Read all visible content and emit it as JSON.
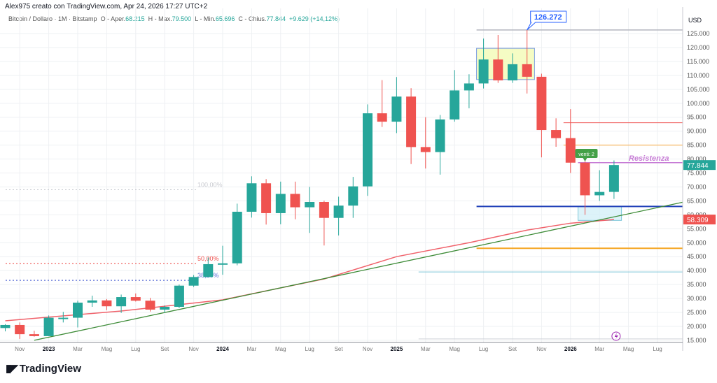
{
  "header": {
    "attribution": "Alex975 creato con TradingView.com, Apr 24, 2026 17:27 UTC+2",
    "symbol": "Bitcoin / Dollaro · 1M · Bitstamp",
    "open_label": "O - Aper.",
    "open": "68.215",
    "high_label": "H - Max.",
    "high": "79.500",
    "low_label": "L - Min.",
    "low": "65.696",
    "close_label": "C - Chius.",
    "close": "77.844",
    "change": "+9.629 (+14,12%)"
  },
  "logo": {
    "text": "TradingView",
    "mark": "17"
  },
  "colors": {
    "up": "#26a69a",
    "down": "#ef5350",
    "grid": "#eef0f3",
    "ma": "#f0616a",
    "trend": "#3d8b37"
  },
  "chart_data": {
    "type": "candlestick",
    "currency_label": "USD",
    "y_ticks": [
      15000,
      20000,
      25000,
      30000,
      35000,
      40000,
      45000,
      50000,
      55000,
      60000,
      65000,
      70000,
      75000,
      80000,
      85000,
      90000,
      95000,
      100000,
      105000,
      110000,
      115000,
      120000,
      125000
    ],
    "y_tick_labels": [
      "15.000",
      "20.000",
      "25.000",
      "30.000",
      "35.000",
      "40.000",
      "45.000",
      "50.000",
      "55.000",
      "60.000",
      "65.000",
      "70.000",
      "75.000",
      "80.000",
      "85.000",
      "90.000",
      "95.000",
      "100.000",
      "105.000",
      "110.000",
      "115.000",
      "120.000",
      "125.000"
    ],
    "ylim": [
      14000,
      128000
    ],
    "x_labels": [
      {
        "month": "2022-11",
        "label": "Nov",
        "bold": false
      },
      {
        "month": "2023-01",
        "label": "2023",
        "bold": true
      },
      {
        "month": "2023-03",
        "label": "Mar",
        "bold": false
      },
      {
        "month": "2023-05",
        "label": "Mag",
        "bold": false
      },
      {
        "month": "2023-07",
        "label": "Lug",
        "bold": false
      },
      {
        "month": "2023-09",
        "label": "Set",
        "bold": false
      },
      {
        "month": "2023-11",
        "label": "Nov",
        "bold": false
      },
      {
        "month": "2024-01",
        "label": "2024",
        "bold": true
      },
      {
        "month": "2024-03",
        "label": "Mar",
        "bold": false
      },
      {
        "month": "2024-05",
        "label": "Mag",
        "bold": false
      },
      {
        "month": "2024-07",
        "label": "Lug",
        "bold": false
      },
      {
        "month": "2024-09",
        "label": "Set",
        "bold": false
      },
      {
        "month": "2024-11",
        "label": "Nov",
        "bold": false
      },
      {
        "month": "2025-01",
        "label": "2025",
        "bold": true
      },
      {
        "month": "2025-03",
        "label": "Mar",
        "bold": false
      },
      {
        "month": "2025-05",
        "label": "Mag",
        "bold": false
      },
      {
        "month": "2025-07",
        "label": "Lug",
        "bold": false
      },
      {
        "month": "2025-09",
        "label": "Set",
        "bold": false
      },
      {
        "month": "2025-11",
        "label": "Nov",
        "bold": false
      },
      {
        "month": "2026-01",
        "label": "2026",
        "bold": true
      },
      {
        "month": "2026-03",
        "label": "Mar",
        "bold": false
      },
      {
        "month": "2026-05",
        "label": "Mag",
        "bold": false
      },
      {
        "month": "2026-07",
        "label": "Lug",
        "bold": false
      }
    ],
    "candles": [
      {
        "month": "2022-10",
        "o": 19400,
        "h": 20800,
        "l": 18200,
        "c": 20500
      },
      {
        "month": "2022-11",
        "o": 20500,
        "h": 21400,
        "l": 15500,
        "c": 17200
      },
      {
        "month": "2022-12",
        "o": 17200,
        "h": 18400,
        "l": 16300,
        "c": 16500
      },
      {
        "month": "2023-01",
        "o": 16500,
        "h": 23900,
        "l": 16500,
        "c": 23100
      },
      {
        "month": "2023-02",
        "o": 23100,
        "h": 25200,
        "l": 21400,
        "c": 23100
      },
      {
        "month": "2023-03",
        "o": 23100,
        "h": 29200,
        "l": 19600,
        "c": 28500
      },
      {
        "month": "2023-04",
        "o": 28500,
        "h": 31000,
        "l": 27000,
        "c": 29300
      },
      {
        "month": "2023-05",
        "o": 29300,
        "h": 29800,
        "l": 25800,
        "c": 27200
      },
      {
        "month": "2023-06",
        "o": 27200,
        "h": 31400,
        "l": 24800,
        "c": 30500
      },
      {
        "month": "2023-07",
        "o": 30500,
        "h": 31800,
        "l": 28900,
        "c": 29200
      },
      {
        "month": "2023-08",
        "o": 29200,
        "h": 30200,
        "l": 25300,
        "c": 26000
      },
      {
        "month": "2023-09",
        "o": 26000,
        "h": 27500,
        "l": 24900,
        "c": 27000
      },
      {
        "month": "2023-10",
        "o": 27000,
        "h": 35000,
        "l": 26500,
        "c": 34600
      },
      {
        "month": "2023-11",
        "o": 34600,
        "h": 38400,
        "l": 34100,
        "c": 37700
      },
      {
        "month": "2023-12",
        "o": 37700,
        "h": 44700,
        "l": 37600,
        "c": 42300
      },
      {
        "month": "2024-01",
        "o": 42300,
        "h": 48900,
        "l": 38500,
        "c": 42600
      },
      {
        "month": "2024-02",
        "o": 42600,
        "h": 64000,
        "l": 41900,
        "c": 61100
      },
      {
        "month": "2024-03",
        "o": 61100,
        "h": 73800,
        "l": 59000,
        "c": 71300
      },
      {
        "month": "2024-04",
        "o": 71300,
        "h": 72800,
        "l": 56500,
        "c": 60600
      },
      {
        "month": "2024-05",
        "o": 60600,
        "h": 71900,
        "l": 56600,
        "c": 67500
      },
      {
        "month": "2024-06",
        "o": 67500,
        "h": 71900,
        "l": 58400,
        "c": 62700
      },
      {
        "month": "2024-07",
        "o": 62700,
        "h": 70000,
        "l": 53500,
        "c": 64600
      },
      {
        "month": "2024-08",
        "o": 64600,
        "h": 65100,
        "l": 49000,
        "c": 58900
      },
      {
        "month": "2024-09",
        "o": 58900,
        "h": 66500,
        "l": 52600,
        "c": 63300
      },
      {
        "month": "2024-10",
        "o": 63300,
        "h": 73600,
        "l": 58900,
        "c": 70200
      },
      {
        "month": "2024-11",
        "o": 70200,
        "h": 99600,
        "l": 66800,
        "c": 96400
      },
      {
        "month": "2024-12",
        "o": 96400,
        "h": 108300,
        "l": 91500,
        "c": 93400
      },
      {
        "month": "2025-01",
        "o": 93400,
        "h": 109400,
        "l": 89300,
        "c": 102400
      },
      {
        "month": "2025-02",
        "o": 102400,
        "h": 105400,
        "l": 78200,
        "c": 84300
      },
      {
        "month": "2025-03",
        "o": 84300,
        "h": 95000,
        "l": 76600,
        "c": 82500
      },
      {
        "month": "2025-04",
        "o": 82500,
        "h": 95800,
        "l": 74400,
        "c": 94200
      },
      {
        "month": "2025-05",
        "o": 94200,
        "h": 111900,
        "l": 93400,
        "c": 104600
      },
      {
        "month": "2025-06",
        "o": 104600,
        "h": 110400,
        "l": 98200,
        "c": 107100
      },
      {
        "month": "2025-07",
        "o": 107100,
        "h": 123200,
        "l": 105300,
        "c": 115700
      },
      {
        "month": "2025-08",
        "o": 115700,
        "h": 124500,
        "l": 107300,
        "c": 108200
      },
      {
        "month": "2025-09",
        "o": 108200,
        "h": 117900,
        "l": 107300,
        "c": 114000
      },
      {
        "month": "2025-10",
        "o": 114000,
        "h": 126272,
        "l": 103500,
        "c": 109500
      },
      {
        "month": "2025-11",
        "o": 109500,
        "h": 110600,
        "l": 80600,
        "c": 90400
      },
      {
        "month": "2025-12",
        "o": 90400,
        "h": 94600,
        "l": 84400,
        "c": 87500
      },
      {
        "month": "2026-01",
        "o": 87500,
        "h": 97900,
        "l": 75000,
        "c": 78700
      },
      {
        "month": "2026-02",
        "o": 78700,
        "h": 79300,
        "l": 60000,
        "c": 67000
      },
      {
        "month": "2026-03",
        "o": 67000,
        "h": 76000,
        "l": 65000,
        "c": 68200
      },
      {
        "month": "2026-04",
        "o": 68215,
        "h": 79500,
        "l": 65696,
        "c": 77844
      }
    ],
    "moving_average": [
      {
        "month": "2022-10",
        "v": 22000
      },
      {
        "month": "2023-06",
        "v": 25500
      },
      {
        "month": "2024-01",
        "v": 29500
      },
      {
        "month": "2024-08",
        "v": 37000
      },
      {
        "month": "2025-01",
        "v": 45000
      },
      {
        "month": "2025-06",
        "v": 50000
      },
      {
        "month": "2025-10",
        "v": 54500
      },
      {
        "month": "2026-01",
        "v": 57000
      },
      {
        "month": "2026-04",
        "v": 58309
      }
    ],
    "trendline": [
      {
        "month": "2022-12",
        "v": 15000
      },
      {
        "month": "2026-10",
        "v": 64500
      }
    ],
    "levels": [
      {
        "name": "ath",
        "value": 126272,
        "from": "2025-07",
        "color": "#b2b5be",
        "width": 1.5
      },
      {
        "name": "red",
        "value": 93000,
        "from": "2026-01",
        "color": "#ef5350",
        "width": 1
      },
      {
        "name": "orange-upper",
        "value": 85000,
        "from": "2026-01",
        "color": "#f7a738",
        "width": 1
      },
      {
        "name": "resistenza",
        "value": 78700,
        "from": "2026-02",
        "color": "#c77dd6",
        "width": 1.5
      },
      {
        "name": "blue",
        "value": 63000,
        "from": "2025-07",
        "color": "#1f3fb8",
        "width": 2
      },
      {
        "name": "orange",
        "value": 48000,
        "from": "2025-07",
        "color": "#f5a623",
        "width": 2
      },
      {
        "name": "cyan",
        "value": 39500,
        "from": "2025-03",
        "color": "#7fc7d9",
        "width": 1
      },
      {
        "name": "gray-low",
        "value": 15500,
        "from": "2025-03",
        "color": "#d0d3d9",
        "width": 1
      }
    ],
    "fib_levels": [
      {
        "label": "100,00%",
        "value": 69000,
        "color": "#c8cad0"
      },
      {
        "label": "50,00%",
        "value": 42500,
        "color": "#ef5350"
      },
      {
        "label": "38,20%",
        "value": 36500,
        "color": "#5b6fd6"
      }
    ],
    "boxes": [
      {
        "name": "top-range",
        "from": "2025-07",
        "to": "2025-11",
        "top": 119700,
        "bottom": 108500,
        "fill": "#f3fbb5",
        "stroke": "#7a9de0"
      },
      {
        "name": "support-zone",
        "from": "2026-02",
        "to": "2026-05",
        "top": 63000,
        "bottom": 58000,
        "fill": "#d4f0f8",
        "stroke": "#7fc7d9"
      }
    ],
    "annotations": {
      "ath_label": "126.272",
      "resistance_label": "Resistenza",
      "signal_label": "venti: 2",
      "last_price": "77.844",
      "ma_price": "58.309"
    }
  }
}
